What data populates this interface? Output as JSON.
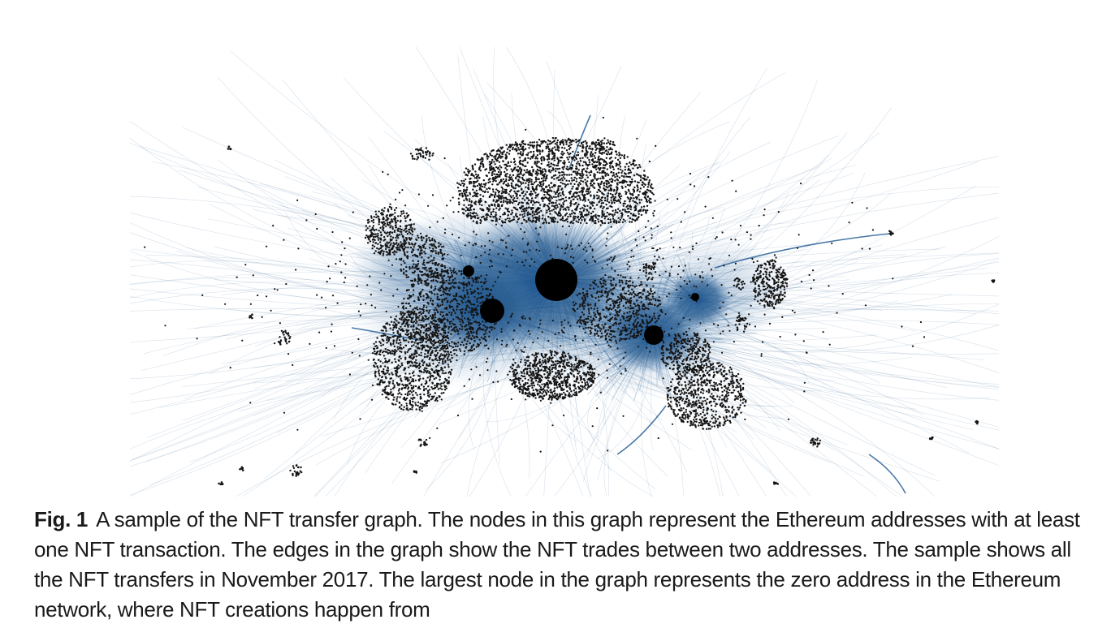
{
  "figure": {
    "label": "Fig. 1",
    "caption": "A sample of the NFT transfer graph. The nodes in this graph represent the Ethereum addresses with at least one NFT transaction. The edges in the graph show the NFT trades between two addresses. The sample shows all the NFT transfers in November 2017. The largest node in the graph represents the zero address in the Ethereum network, where NFT creations happen from"
  },
  "colors": {
    "edge": "#2c5f92",
    "edge_dense": "#1d5690",
    "node": "#141414",
    "background": "#ffffff"
  }
}
